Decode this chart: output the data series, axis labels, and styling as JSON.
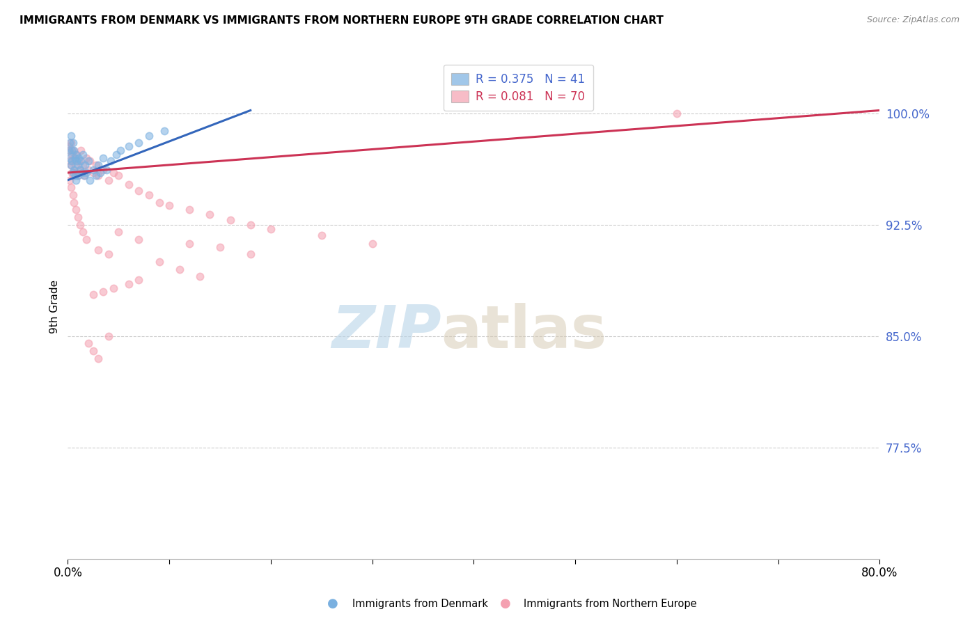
{
  "title": "IMMIGRANTS FROM DENMARK VS IMMIGRANTS FROM NORTHERN EUROPE 9TH GRADE CORRELATION CHART",
  "source": "Source: ZipAtlas.com",
  "ylabel": "9th Grade",
  "xlim": [
    0.0,
    0.8
  ],
  "ylim": [
    0.7,
    1.04
  ],
  "ytick_positions": [
    0.775,
    0.85,
    0.925,
    1.0
  ],
  "ytick_labels": [
    "77.5%",
    "85.0%",
    "92.5%",
    "100.0%"
  ],
  "legend_entries": [
    {
      "label": "Immigrants from Denmark",
      "color": "#7ab0e0",
      "R": 0.375,
      "N": 41
    },
    {
      "label": "Immigrants from Northern Europe",
      "color": "#f4a0b0",
      "R": 0.081,
      "N": 70
    }
  ],
  "blue_scatter_x": [
    0.001,
    0.002,
    0.002,
    0.003,
    0.003,
    0.004,
    0.004,
    0.005,
    0.005,
    0.006,
    0.006,
    0.007,
    0.007,
    0.008,
    0.008,
    0.009,
    0.01,
    0.01,
    0.011,
    0.012,
    0.013,
    0.014,
    0.015,
    0.016,
    0.017,
    0.018,
    0.02,
    0.022,
    0.025,
    0.028,
    0.03,
    0.032,
    0.035,
    0.038,
    0.042,
    0.048,
    0.052,
    0.06,
    0.07,
    0.08,
    0.095
  ],
  "blue_scatter_y": [
    0.975,
    0.98,
    0.97,
    0.985,
    0.965,
    0.975,
    0.968,
    0.98,
    0.96,
    0.975,
    0.962,
    0.97,
    0.958,
    0.972,
    0.955,
    0.968,
    0.965,
    0.958,
    0.97,
    0.962,
    0.968,
    0.96,
    0.972,
    0.958,
    0.965,
    0.96,
    0.968,
    0.955,
    0.962,
    0.958,
    0.965,
    0.96,
    0.97,
    0.962,
    0.968,
    0.972,
    0.975,
    0.978,
    0.98,
    0.985,
    0.988
  ],
  "pink_scatter_x": [
    0.001,
    0.002,
    0.002,
    0.003,
    0.003,
    0.004,
    0.004,
    0.005,
    0.005,
    0.006,
    0.007,
    0.008,
    0.009,
    0.01,
    0.011,
    0.012,
    0.013,
    0.015,
    0.016,
    0.018,
    0.02,
    0.022,
    0.025,
    0.028,
    0.03,
    0.035,
    0.04,
    0.045,
    0.05,
    0.06,
    0.07,
    0.08,
    0.09,
    0.1,
    0.12,
    0.14,
    0.16,
    0.18,
    0.2,
    0.25,
    0.3,
    0.002,
    0.003,
    0.005,
    0.006,
    0.008,
    0.01,
    0.012,
    0.015,
    0.018,
    0.02,
    0.025,
    0.03,
    0.04,
    0.05,
    0.07,
    0.03,
    0.04,
    0.15,
    0.12,
    0.18,
    0.09,
    0.11,
    0.13,
    0.07,
    0.06,
    0.045,
    0.035,
    0.025,
    0.6
  ],
  "pink_scatter_y": [
    0.978,
    0.975,
    0.968,
    0.98,
    0.965,
    0.972,
    0.96,
    0.975,
    0.958,
    0.97,
    0.965,
    0.96,
    0.972,
    0.958,
    0.968,
    0.962,
    0.975,
    0.965,
    0.958,
    0.97,
    0.962,
    0.968,
    0.96,
    0.965,
    0.958,
    0.962,
    0.955,
    0.96,
    0.958,
    0.952,
    0.948,
    0.945,
    0.94,
    0.938,
    0.935,
    0.932,
    0.928,
    0.925,
    0.922,
    0.918,
    0.912,
    0.955,
    0.95,
    0.945,
    0.94,
    0.935,
    0.93,
    0.925,
    0.92,
    0.915,
    0.845,
    0.84,
    0.835,
    0.85,
    0.92,
    0.915,
    0.908,
    0.905,
    0.91,
    0.912,
    0.905,
    0.9,
    0.895,
    0.89,
    0.888,
    0.885,
    0.882,
    0.88,
    0.878,
    1.0
  ],
  "blue_line_x": [
    0.0,
    0.18
  ],
  "blue_line_y": [
    0.955,
    1.002
  ],
  "pink_line_x": [
    0.0,
    0.8
  ],
  "pink_line_y": [
    0.96,
    1.002
  ],
  "watermark_zip": "ZIP",
  "watermark_atlas": "atlas",
  "watermark_color_zip": "#b8d4e8",
  "watermark_color_atlas": "#d4c8b0",
  "scatter_alpha": 0.55,
  "scatter_size": 55,
  "grid_color": "#cccccc",
  "title_fontsize": 11,
  "axis_color": "#4466cc",
  "background_color": "#ffffff"
}
